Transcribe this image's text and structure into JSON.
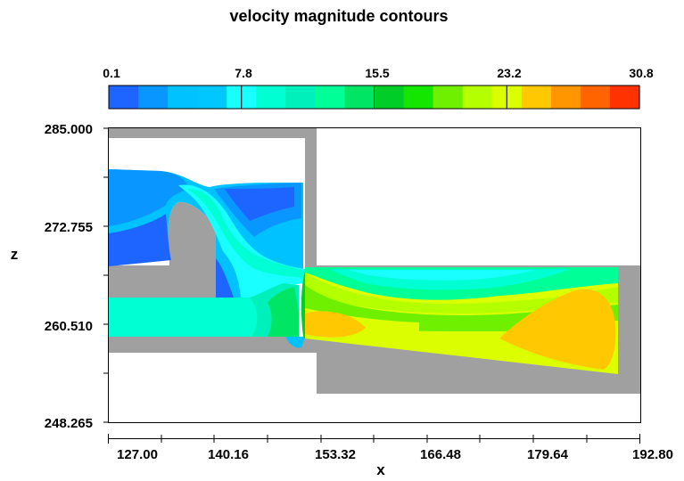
{
  "chart_data": {
    "type": "heatmap",
    "title": "velocity magnitude contours",
    "xlabel": "x",
    "ylabel": "z",
    "xlim": [
      120.42,
      192.8
    ],
    "ylim": [
      248.265,
      285.0
    ],
    "x_ticks": [
      "127.00",
      "140.16",
      "153.32",
      "166.48",
      "179.64",
      "192.80"
    ],
    "y_ticks": [
      "285.000",
      "272.755",
      "260.510",
      "248.265"
    ],
    "colorbar": {
      "range": [
        0.1,
        30.8
      ],
      "labels": [
        "0.1",
        "7.8",
        "15.5",
        "23.2",
        "30.8"
      ],
      "colors": [
        "#1e64ff",
        "#0a96ff",
        "#00c2ff",
        "#00c8ff",
        "#19ffff",
        "#00ffd2",
        "#00f0bc",
        "#00ff96",
        "#00e664",
        "#00cd28",
        "#14e600",
        "#6ef000",
        "#b4ff00",
        "#dcff00",
        "#ffc800",
        "#ff9600",
        "#ff6400",
        "#ff3200"
      ]
    }
  }
}
